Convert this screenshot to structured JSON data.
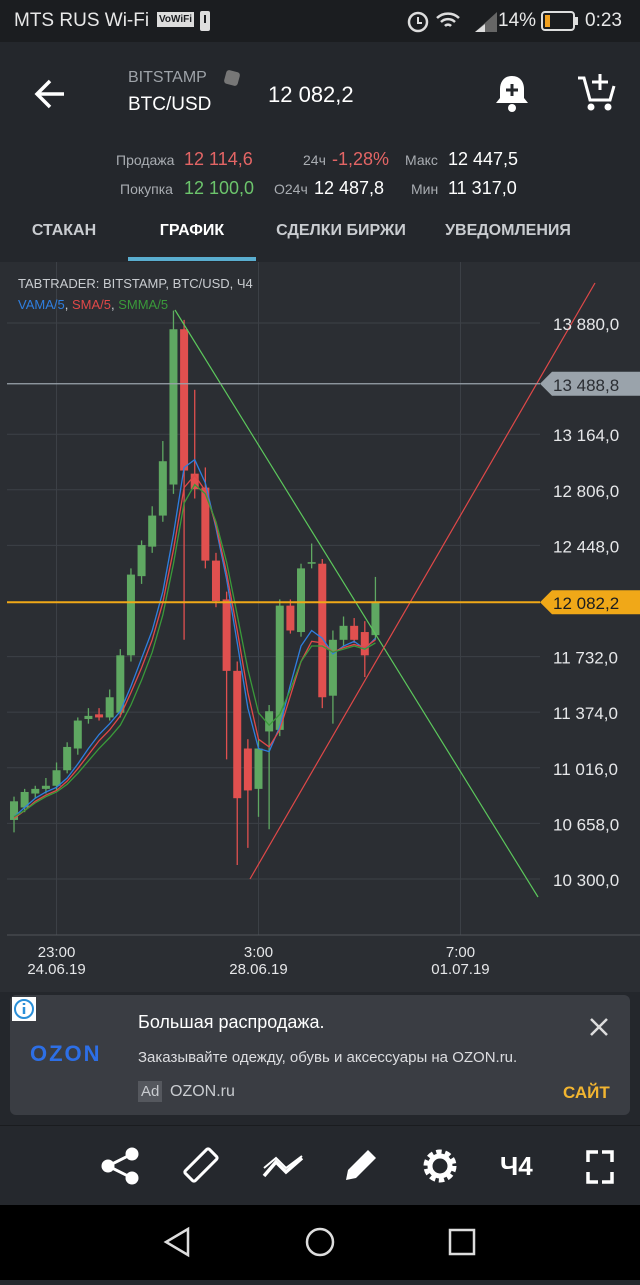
{
  "status_bar": {
    "carrier": "MTS RUS Wi-Fi",
    "vowifi": "VoWiFi",
    "battery": "14%",
    "time": "0:23"
  },
  "header": {
    "exchange": "BITSTAMP",
    "pair": "BTC/USD",
    "price": "12 082,2"
  },
  "stats": {
    "sell_label": "Продажа",
    "sell": "12 114,6",
    "buy_label": "Покупка",
    "buy": "12 100,0",
    "change_label": "24ч",
    "change": "-1,28%",
    "open_label": "O24ч",
    "open": "12 487,8",
    "max_label": "Макс",
    "max": "12 447,5",
    "min_label": "Мин",
    "min": "11 317,0"
  },
  "tabs": {
    "items": [
      "СТАКАН",
      "ГРАФИК",
      "СДЕЛКИ БИРЖИ",
      "УВЕДОМЛЕНИЯ"
    ],
    "active": 1
  },
  "chart_data": {
    "type": "candlestick",
    "title": "TABTRADER: BITSTAMP, BTC/USD, Ч4",
    "legend_separator": ", ",
    "up_color": "#5fa862",
    "down_color": "#e0504f",
    "open": [
      10680,
      10760,
      10850,
      10880,
      10900,
      11000,
      11140,
      11330,
      11360,
      11340,
      11370,
      11740,
      12250,
      12440,
      12640,
      12840,
      13840,
      12910,
      12820,
      12350,
      12100,
      11640,
      11140,
      10880,
      11250,
      11260,
      12060,
      11890,
      12330,
      12330,
      11480,
      11840,
      11930,
      11890,
      11870
    ],
    "high": [
      10830,
      10880,
      10900,
      10950,
      11050,
      11180,
      11340,
      11400,
      11400,
      11520,
      11780,
      12300,
      12480,
      12700,
      13120,
      13960,
      13900,
      13450,
      12950,
      12400,
      12150,
      11700,
      11200,
      11200,
      11420,
      12100,
      12100,
      12330,
      12460,
      12360,
      11900,
      11990,
      11980,
      11960,
      12245
    ],
    "low": [
      10600,
      10730,
      10820,
      10850,
      10870,
      10980,
      11100,
      11300,
      11320,
      11320,
      11340,
      11700,
      12200,
      12400,
      12600,
      12780,
      11840,
      12750,
      12300,
      12050,
      11070,
      10390,
      10500,
      10700,
      10620,
      11220,
      11880,
      11860,
      12300,
      11400,
      11300,
      11800,
      11820,
      11600,
      11840
    ],
    "close": [
      10800,
      10860,
      10880,
      10900,
      11000,
      11150,
      11320,
      11350,
      11340,
      11470,
      11740,
      12260,
      12450,
      12640,
      12990,
      13840,
      12930,
      12810,
      12350,
      12090,
      11640,
      10820,
      10870,
      11140,
      11380,
      12060,
      11900,
      12300,
      12340,
      11470,
      11840,
      11930,
      11840,
      11740,
      12080
    ],
    "series": [
      {
        "name": "VAMA/5",
        "color": "#2f7fe0",
        "values": [
          10700,
          10760,
          10820,
          10860,
          10890,
          10950,
          11040,
          11140,
          11230,
          11300,
          11380,
          11540,
          11720,
          11900,
          12150,
          12520,
          12950,
          13000,
          12850,
          12560,
          12230,
          11820,
          11400,
          11140,
          11120,
          11280,
          11550,
          11800,
          11900,
          11850,
          11750,
          11800,
          11830,
          11780,
          11850
        ]
      },
      {
        "name": "SMA/5",
        "color": "#e04848",
        "values": [
          10690,
          10740,
          10800,
          10840,
          10870,
          10930,
          11010,
          11100,
          11190,
          11260,
          11350,
          11500,
          11660,
          11840,
          12080,
          12420,
          12820,
          12900,
          12800,
          12580,
          12270,
          11900,
          11500,
          11200,
          11150,
          11260,
          11480,
          11700,
          11830,
          11820,
          11760,
          11790,
          11810,
          11790,
          11840
        ]
      },
      {
        "name": "SMMA/5",
        "color": "#3a9a3a",
        "values": [
          10700,
          10740,
          10790,
          10830,
          10860,
          10910,
          10980,
          11060,
          11140,
          11210,
          11290,
          11420,
          11580,
          11760,
          12000,
          12330,
          12720,
          12840,
          12780,
          12600,
          12340,
          12000,
          11650,
          11370,
          11290,
          11360,
          11520,
          11700,
          11800,
          11800,
          11760,
          11780,
          11800,
          11780,
          11820
        ]
      }
    ],
    "ylim": [
      9939,
      14273
    ],
    "yticks": [
      {
        "value": 13880,
        "label": "13 880,0"
      },
      {
        "value": 13164,
        "label": "13 164,0"
      },
      {
        "value": 12806,
        "label": "12 806,0"
      },
      {
        "value": 12448,
        "label": "12 448,0"
      },
      {
        "value": 11732,
        "label": "11 732,0"
      },
      {
        "value": 11374,
        "label": "11 374,0"
      },
      {
        "value": 11016,
        "label": "11 016,0"
      },
      {
        "value": 10658,
        "label": "10 658,0"
      },
      {
        "value": 10300,
        "label": "10 300,0"
      }
    ],
    "xlim": [
      -0.66,
      58.89
    ],
    "xticks": [
      {
        "value": 4,
        "label": "23:00",
        "date": "24.06.19"
      },
      {
        "value": 23,
        "label": "3:00",
        "date": "28.06.19"
      },
      {
        "value": 42,
        "label": "7:00",
        "date": "01.07.19"
      }
    ],
    "price_lines": [
      {
        "value": 13488.8,
        "label": "13 488,8",
        "color": "#9aa3ab"
      },
      {
        "value": 12082.2,
        "label": "12 082,2",
        "color": "#f0a818"
      }
    ],
    "grid": true
  },
  "ad": {
    "brand": "OZON",
    "title": "Большая распродажа.",
    "text": "Заказывайте одежду, обувь и аксессуары на OZON.ru.",
    "tag": "Ad",
    "domain": "OZON.ru",
    "cta": "САЙТ"
  },
  "toolbar": {
    "timeframe": "Ч4"
  }
}
